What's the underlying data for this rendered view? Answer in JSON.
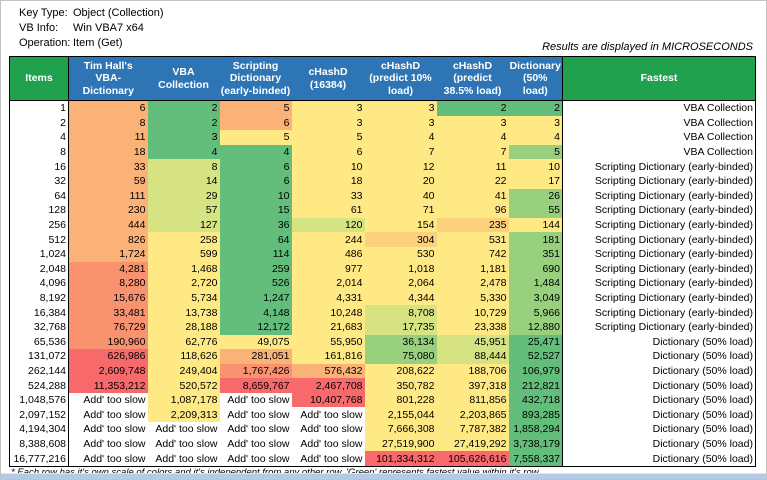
{
  "meta": {
    "key_type_label": "Key Type:",
    "key_type": "Object (Collection)",
    "vb_info_label": "VB Info:",
    "vb_info": "Win VBA7 x64",
    "operation_label": "Operation:",
    "operation": "Item (Get)",
    "results_note": "Results are displayed in MICROSECONDS"
  },
  "palette": {
    "g": "#63BE7B",
    "lg": "#98D07E",
    "ly": "#D6E383",
    "y": "#FFE984",
    "yo": "#FDD07E",
    "o": "#FBB277",
    "do": "#F9926F",
    "r": "#F8696B",
    "w": "#FFFFFF"
  },
  "table": {
    "columns": [
      "Items",
      "Tim Hall's VBA-Dictionary",
      "VBA Collection",
      "Scripting Dictionary (early-binded)",
      "cHashD (16384)",
      "cHashD (predict 10% load)",
      "cHashD (predict 38.5% load)",
      "Dictionary (50% load)",
      "Fastest"
    ],
    "rows": [
      {
        "items": "1",
        "cells": [
          {
            "t": "6",
            "c": "o"
          },
          {
            "t": "2",
            "c": "g"
          },
          {
            "t": "5",
            "c": "o"
          },
          {
            "t": "3",
            "c": "y"
          },
          {
            "t": "3",
            "c": "y"
          },
          {
            "t": "2",
            "c": "g"
          },
          {
            "t": "2",
            "c": "g"
          }
        ],
        "fastest": "VBA Collection"
      },
      {
        "items": "2",
        "cells": [
          {
            "t": "8",
            "c": "o"
          },
          {
            "t": "2",
            "c": "g"
          },
          {
            "t": "6",
            "c": "o"
          },
          {
            "t": "3",
            "c": "y"
          },
          {
            "t": "3",
            "c": "y"
          },
          {
            "t": "3",
            "c": "y"
          },
          {
            "t": "3",
            "c": "y"
          }
        ],
        "fastest": "VBA Collection"
      },
      {
        "items": "4",
        "cells": [
          {
            "t": "11",
            "c": "o"
          },
          {
            "t": "3",
            "c": "g"
          },
          {
            "t": "5",
            "c": "y"
          },
          {
            "t": "5",
            "c": "y"
          },
          {
            "t": "4",
            "c": "y"
          },
          {
            "t": "4",
            "c": "y"
          },
          {
            "t": "4",
            "c": "y"
          }
        ],
        "fastest": "VBA Collection"
      },
      {
        "items": "8",
        "cells": [
          {
            "t": "18",
            "c": "o"
          },
          {
            "t": "4",
            "c": "g"
          },
          {
            "t": "4",
            "c": "g"
          },
          {
            "t": "6",
            "c": "y"
          },
          {
            "t": "7",
            "c": "y"
          },
          {
            "t": "7",
            "c": "y"
          },
          {
            "t": "5",
            "c": "lg"
          }
        ],
        "fastest": "VBA Collection"
      },
      {
        "items": "16",
        "cells": [
          {
            "t": "33",
            "c": "o"
          },
          {
            "t": "8",
            "c": "ly"
          },
          {
            "t": "6",
            "c": "g"
          },
          {
            "t": "10",
            "c": "y"
          },
          {
            "t": "12",
            "c": "y"
          },
          {
            "t": "11",
            "c": "y"
          },
          {
            "t": "10",
            "c": "y"
          }
        ],
        "fastest": "Scripting Dictionary (early-binded)"
      },
      {
        "items": "32",
        "cells": [
          {
            "t": "59",
            "c": "o"
          },
          {
            "t": "14",
            "c": "ly"
          },
          {
            "t": "6",
            "c": "g"
          },
          {
            "t": "18",
            "c": "y"
          },
          {
            "t": "20",
            "c": "y"
          },
          {
            "t": "22",
            "c": "y"
          },
          {
            "t": "17",
            "c": "y"
          }
        ],
        "fastest": "Scripting Dictionary (early-binded)"
      },
      {
        "items": "64",
        "cells": [
          {
            "t": "111",
            "c": "o"
          },
          {
            "t": "29",
            "c": "ly"
          },
          {
            "t": "10",
            "c": "g"
          },
          {
            "t": "33",
            "c": "y"
          },
          {
            "t": "40",
            "c": "y"
          },
          {
            "t": "41",
            "c": "y"
          },
          {
            "t": "26",
            "c": "lg"
          }
        ],
        "fastest": "Scripting Dictionary (early-binded)"
      },
      {
        "items": "128",
        "cells": [
          {
            "t": "230",
            "c": "o"
          },
          {
            "t": "57",
            "c": "ly"
          },
          {
            "t": "15",
            "c": "g"
          },
          {
            "t": "61",
            "c": "y"
          },
          {
            "t": "71",
            "c": "y"
          },
          {
            "t": "96",
            "c": "y"
          },
          {
            "t": "55",
            "c": "lg"
          }
        ],
        "fastest": "Scripting Dictionary (early-binded)"
      },
      {
        "items": "256",
        "cells": [
          {
            "t": "444",
            "c": "o"
          },
          {
            "t": "127",
            "c": "ly"
          },
          {
            "t": "36",
            "c": "g"
          },
          {
            "t": "120",
            "c": "ly"
          },
          {
            "t": "154",
            "c": "y"
          },
          {
            "t": "235",
            "c": "yo"
          },
          {
            "t": "144",
            "c": "y"
          }
        ],
        "fastest": "Scripting Dictionary (early-binded)"
      },
      {
        "items": "512",
        "cells": [
          {
            "t": "826",
            "c": "o"
          },
          {
            "t": "258",
            "c": "y"
          },
          {
            "t": "64",
            "c": "g"
          },
          {
            "t": "244",
            "c": "y"
          },
          {
            "t": "304",
            "c": "yo"
          },
          {
            "t": "531",
            "c": "y"
          },
          {
            "t": "181",
            "c": "lg"
          }
        ],
        "fastest": "Scripting Dictionary (early-binded)"
      },
      {
        "items": "1,024",
        "cells": [
          {
            "t": "1,724",
            "c": "o"
          },
          {
            "t": "599",
            "c": "y"
          },
          {
            "t": "114",
            "c": "g"
          },
          {
            "t": "486",
            "c": "y"
          },
          {
            "t": "530",
            "c": "y"
          },
          {
            "t": "742",
            "c": "y"
          },
          {
            "t": "351",
            "c": "lg"
          }
        ],
        "fastest": "Scripting Dictionary (early-binded)"
      },
      {
        "items": "2,048",
        "cells": [
          {
            "t": "4,281",
            "c": "do"
          },
          {
            "t": "1,468",
            "c": "y"
          },
          {
            "t": "259",
            "c": "g"
          },
          {
            "t": "977",
            "c": "y"
          },
          {
            "t": "1,018",
            "c": "y"
          },
          {
            "t": "1,181",
            "c": "y"
          },
          {
            "t": "690",
            "c": "lg"
          }
        ],
        "fastest": "Scripting Dictionary (early-binded)"
      },
      {
        "items": "4,096",
        "cells": [
          {
            "t": "8,280",
            "c": "do"
          },
          {
            "t": "2,720",
            "c": "y"
          },
          {
            "t": "526",
            "c": "g"
          },
          {
            "t": "2,014",
            "c": "y"
          },
          {
            "t": "2,064",
            "c": "y"
          },
          {
            "t": "2,478",
            "c": "y"
          },
          {
            "t": "1,484",
            "c": "lg"
          }
        ],
        "fastest": "Scripting Dictionary (early-binded)"
      },
      {
        "items": "8,192",
        "cells": [
          {
            "t": "15,676",
            "c": "do"
          },
          {
            "t": "5,734",
            "c": "y"
          },
          {
            "t": "1,247",
            "c": "g"
          },
          {
            "t": "4,331",
            "c": "y"
          },
          {
            "t": "4,344",
            "c": "y"
          },
          {
            "t": "5,330",
            "c": "y"
          },
          {
            "t": "3,049",
            "c": "lg"
          }
        ],
        "fastest": "Scripting Dictionary (early-binded)"
      },
      {
        "items": "16,384",
        "cells": [
          {
            "t": "33,481",
            "c": "do"
          },
          {
            "t": "13,738",
            "c": "y"
          },
          {
            "t": "4,148",
            "c": "g"
          },
          {
            "t": "10,248",
            "c": "y"
          },
          {
            "t": "8,708",
            "c": "ly"
          },
          {
            "t": "10,729",
            "c": "y"
          },
          {
            "t": "5,966",
            "c": "lg"
          }
        ],
        "fastest": "Scripting Dictionary (early-binded)"
      },
      {
        "items": "32,768",
        "cells": [
          {
            "t": "76,729",
            "c": "do"
          },
          {
            "t": "28,188",
            "c": "y"
          },
          {
            "t": "12,172",
            "c": "g"
          },
          {
            "t": "21,683",
            "c": "y"
          },
          {
            "t": "17,735",
            "c": "ly"
          },
          {
            "t": "23,338",
            "c": "y"
          },
          {
            "t": "12,880",
            "c": "lg"
          }
        ],
        "fastest": "Scripting Dictionary (early-binded)"
      },
      {
        "items": "65,536",
        "cells": [
          {
            "t": "190,960",
            "c": "do"
          },
          {
            "t": "62,776",
            "c": "y"
          },
          {
            "t": "49,075",
            "c": "y"
          },
          {
            "t": "55,950",
            "c": "y"
          },
          {
            "t": "36,134",
            "c": "lg"
          },
          {
            "t": "45,951",
            "c": "ly"
          },
          {
            "t": "25,471",
            "c": "g"
          }
        ],
        "fastest": "Dictionary (50% load)"
      },
      {
        "items": "131,072",
        "cells": [
          {
            "t": "626,986",
            "c": "r"
          },
          {
            "t": "118,626",
            "c": "y"
          },
          {
            "t": "281,051",
            "c": "o"
          },
          {
            "t": "161,816",
            "c": "y"
          },
          {
            "t": "75,080",
            "c": "lg"
          },
          {
            "t": "88,444",
            "c": "ly"
          },
          {
            "t": "52,527",
            "c": "g"
          }
        ],
        "fastest": "Dictionary (50% load)"
      },
      {
        "items": "262,144",
        "cells": [
          {
            "t": "2,609,748",
            "c": "r"
          },
          {
            "t": "249,404",
            "c": "y"
          },
          {
            "t": "1,767,426",
            "c": "do"
          },
          {
            "t": "576,432",
            "c": "o"
          },
          {
            "t": "208,622",
            "c": "y"
          },
          {
            "t": "188,706",
            "c": "y"
          },
          {
            "t": "106,979",
            "c": "g"
          }
        ],
        "fastest": "Dictionary (50% load)"
      },
      {
        "items": "524,288",
        "cells": [
          {
            "t": "11,353,212",
            "c": "r"
          },
          {
            "t": "520,572",
            "c": "y"
          },
          {
            "t": "8,659,767",
            "c": "r"
          },
          {
            "t": "2,467,708",
            "c": "r"
          },
          {
            "t": "350,782",
            "c": "y"
          },
          {
            "t": "397,318",
            "c": "y"
          },
          {
            "t": "212,821",
            "c": "g"
          }
        ],
        "fastest": "Dictionary (50% load)"
      },
      {
        "items": "1,048,576",
        "cells": [
          {
            "t": "Add' too slow",
            "c": "w"
          },
          {
            "t": "1,087,178",
            "c": "y"
          },
          {
            "t": "Add' too slow",
            "c": "w"
          },
          {
            "t": "10,407,768",
            "c": "r"
          },
          {
            "t": "801,228",
            "c": "y"
          },
          {
            "t": "811,856",
            "c": "y"
          },
          {
            "t": "432,718",
            "c": "g"
          }
        ],
        "fastest": "Dictionary (50% load)"
      },
      {
        "items": "2,097,152",
        "cells": [
          {
            "t": "Add' too slow",
            "c": "w"
          },
          {
            "t": "2,209,313",
            "c": "y"
          },
          {
            "t": "Add' too slow",
            "c": "w"
          },
          {
            "t": "Add' too slow",
            "c": "w"
          },
          {
            "t": "2,155,044",
            "c": "y"
          },
          {
            "t": "2,203,865",
            "c": "y"
          },
          {
            "t": "893,285",
            "c": "g"
          }
        ],
        "fastest": "Dictionary (50% load)"
      },
      {
        "items": "4,194,304",
        "cells": [
          {
            "t": "Add' too slow",
            "c": "w"
          },
          {
            "t": "Add' too slow",
            "c": "w"
          },
          {
            "t": "Add' too slow",
            "c": "w"
          },
          {
            "t": "Add' too slow",
            "c": "w"
          },
          {
            "t": "7,666,308",
            "c": "y"
          },
          {
            "t": "7,787,382",
            "c": "y"
          },
          {
            "t": "1,858,294",
            "c": "g"
          }
        ],
        "fastest": "Dictionary (50% load)"
      },
      {
        "items": "8,388,608",
        "cells": [
          {
            "t": "Add' too slow",
            "c": "w"
          },
          {
            "t": "Add' too slow",
            "c": "w"
          },
          {
            "t": "Add' too slow",
            "c": "w"
          },
          {
            "t": "Add' too slow",
            "c": "w"
          },
          {
            "t": "27,519,900",
            "c": "y"
          },
          {
            "t": "27,419,292",
            "c": "y"
          },
          {
            "t": "3,738,179",
            "c": "g"
          }
        ],
        "fastest": "Dictionary (50% load)"
      },
      {
        "items": "16,777,216",
        "cells": [
          {
            "t": "Add' too slow",
            "c": "w"
          },
          {
            "t": "Add' too slow",
            "c": "w"
          },
          {
            "t": "Add' too slow",
            "c": "w"
          },
          {
            "t": "Add' too slow",
            "c": "w"
          },
          {
            "t": "101,334,312",
            "c": "r"
          },
          {
            "t": "105,626,616",
            "c": "r"
          },
          {
            "t": "7,558,337",
            "c": "g"
          }
        ],
        "fastest": "Dictionary (50% load)"
      }
    ]
  },
  "footnote": "* Each row has it's own scale of colors and it's independent from any other row. 'Green' represents fastest value within it's row."
}
